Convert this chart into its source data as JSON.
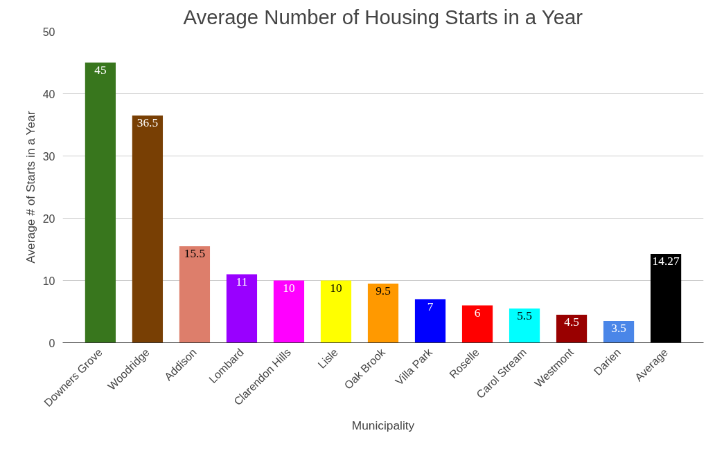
{
  "chart_data": {
    "type": "bar",
    "title": "Average Number of Housing Starts in a Year",
    "xlabel": "Municipality",
    "ylabel": "Average # of Starts in a Year",
    "categories": [
      "Downers Grove",
      "Woodridge",
      "Addison",
      "Lombard",
      "Clarendon Hills",
      "Lisle",
      "Oak Brook",
      "Villa Park",
      "Roselle",
      "Carol Stream",
      "Westmont",
      "Darien",
      "Average"
    ],
    "values": [
      45,
      36.5,
      15.5,
      11,
      10,
      10,
      9.5,
      7,
      6,
      5.5,
      4.5,
      3.5,
      14.27
    ],
    "colors": [
      "#38761d",
      "#783f04",
      "#dd7e6b",
      "#9900ff",
      "#ff00ff",
      "#ffff00",
      "#ff9900",
      "#0000ff",
      "#ff0000",
      "#00ffff",
      "#990000",
      "#4a86e8",
      "#000000"
    ],
    "ylim": [
      0,
      50
    ],
    "yticks": [
      0,
      10,
      20,
      30,
      40,
      50
    ],
    "grid": "y",
    "data_labels": true
  }
}
